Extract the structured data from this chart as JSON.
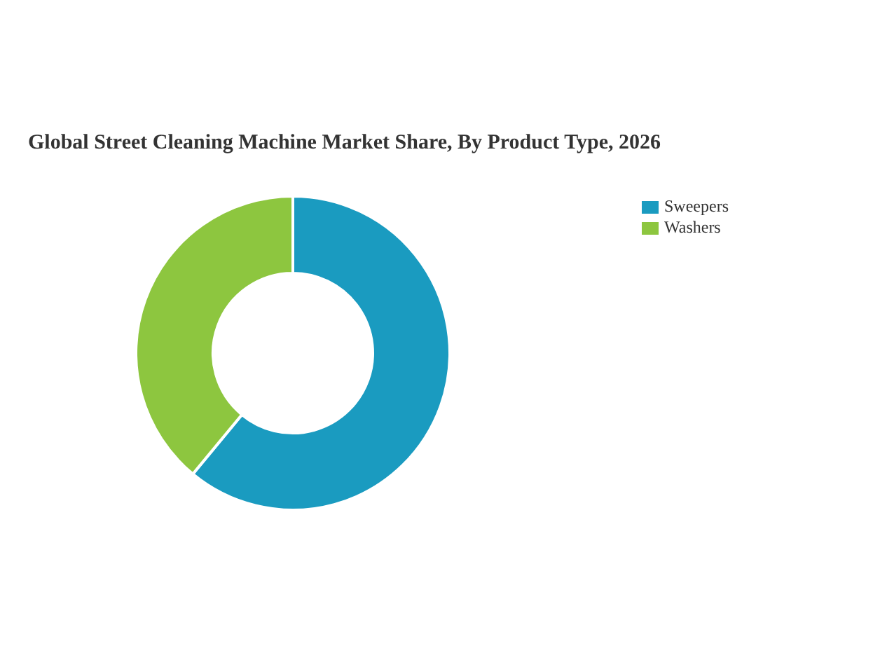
{
  "chart_data": {
    "type": "donut",
    "title": "Global Street Cleaning Machine Market Share, By Product Type, 2026",
    "categories": [
      "Sweepers",
      "Washers"
    ],
    "values": [
      61,
      39
    ],
    "colors": [
      "#1a9bc0",
      "#8dc63f"
    ],
    "legend": "top right"
  }
}
